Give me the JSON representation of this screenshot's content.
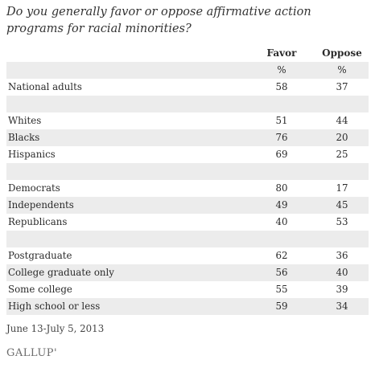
{
  "title": "Do you generally favor or oppose affirmative action programs for racial minorities?",
  "footnote": "June 13-July 5, 2013",
  "logo": "GALLUP'",
  "chart_data": {
    "type": "table",
    "title": "Do you generally favor or oppose affirmative action programs for racial minorities?",
    "columns": [
      "Favor",
      "Oppose"
    ],
    "units": [
      "%",
      "%"
    ],
    "rows": [
      {
        "label": "National adults",
        "favor": "58",
        "oppose": "37"
      },
      {
        "label": "",
        "favor": "",
        "oppose": ""
      },
      {
        "label": "Whites",
        "favor": "51",
        "oppose": "44"
      },
      {
        "label": "Blacks",
        "favor": "76",
        "oppose": "20"
      },
      {
        "label": "Hispanics",
        "favor": "69",
        "oppose": "25"
      },
      {
        "label": "",
        "favor": "",
        "oppose": ""
      },
      {
        "label": "Democrats",
        "favor": "80",
        "oppose": "17"
      },
      {
        "label": "Independents",
        "favor": "49",
        "oppose": "45"
      },
      {
        "label": "Republicans",
        "favor": "40",
        "oppose": "53"
      },
      {
        "label": "",
        "favor": "",
        "oppose": ""
      },
      {
        "label": "Postgraduate",
        "favor": "62",
        "oppose": "36"
      },
      {
        "label": "College graduate only",
        "favor": "56",
        "oppose": "40"
      },
      {
        "label": "Some college",
        "favor": "55",
        "oppose": "39"
      },
      {
        "label": "High school or less",
        "favor": "59",
        "oppose": "34"
      }
    ]
  }
}
